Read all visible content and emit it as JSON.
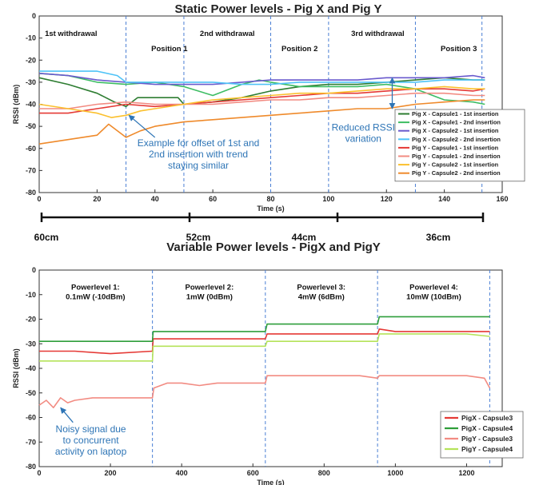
{
  "chart_data": [
    {
      "type": "line",
      "title": "Static Power levels - Pig X and Pig Y",
      "xlabel": "Time (s)",
      "ylabel": "RSSI (dBm)",
      "xlim": [
        0,
        160
      ],
      "ylim": [
        -80,
        0
      ],
      "xticks": [
        "0",
        "20",
        "40",
        "60",
        "80",
        "100",
        "120",
        "140",
        "160"
      ],
      "yticks": [
        "0",
        "-10",
        "-20",
        "-30",
        "-40",
        "-50",
        "-60",
        "-70",
        "-80"
      ],
      "grid": false,
      "legend_position": "right",
      "region_labels": [
        {
          "text": "1st withdrawal",
          "x": 11
        },
        {
          "text": "Position 1",
          "x": 45
        },
        {
          "text": "2nd withdrawal",
          "x": 65
        },
        {
          "text": "Position 2",
          "x": 90
        },
        {
          "text": "3rd withdrawal",
          "x": 117
        },
        {
          "text": "Position 3",
          "x": 145
        }
      ],
      "region_labels_y": [
        -9,
        -16,
        -9,
        -16,
        -9,
        -16
      ],
      "dividers_x": [
        30,
        50,
        80,
        100,
        130,
        153
      ],
      "annotations": [
        {
          "lines": [
            "Example for offset of 1st and",
            "2nd insertion with trend",
            "staying similar"
          ],
          "x": 55,
          "y": -59
        },
        {
          "lines": [
            "Reduced RSSI",
            "variation"
          ],
          "x": 112,
          "y": -52
        }
      ],
      "arrow_annotations": {
        "offset_arrow_from": [
          40,
          -55
        ],
        "offset_arrow_to": [
          31,
          -45
        ],
        "rssi_arrow_x": 122,
        "rssi_arrow_range": [
          -28,
          -42
        ]
      },
      "series": [
        {
          "name": "Pig X - Capsule1 - 1st insertion",
          "color": "#2e7d32",
          "x": [
            0,
            10,
            20,
            26,
            30,
            34,
            40,
            48,
            50,
            60,
            70,
            80,
            90,
            100,
            110,
            120,
            130,
            140,
            150,
            154
          ],
          "y": [
            -28,
            -31,
            -35,
            -39,
            -41,
            -37,
            -37,
            -37,
            -40,
            -39,
            -37,
            -34,
            -32,
            -31,
            -31,
            -30,
            -29,
            -28,
            -29,
            -29
          ]
        },
        {
          "name": "Pig X - Capsule1 - 2nd insertion",
          "color": "#3dbd63",
          "x": [
            0,
            10,
            20,
            30,
            40,
            50,
            60,
            70,
            76,
            80,
            90,
            100,
            110,
            120,
            130,
            140,
            150,
            154
          ],
          "y": [
            -26,
            -27,
            -30,
            -31,
            -30,
            -32,
            -36,
            -31,
            -29,
            -30,
            -32,
            -32,
            -32,
            -31,
            -33,
            -38,
            -39,
            -40
          ]
        },
        {
          "name": "Pig X - Capsule2 - 1st insertion",
          "color": "#6a5acd",
          "x": [
            0,
            10,
            20,
            30,
            40,
            50,
            60,
            70,
            80,
            90,
            100,
            110,
            120,
            130,
            140,
            150,
            154
          ],
          "y": [
            -26,
            -27,
            -29,
            -30,
            -31,
            -31,
            -31,
            -30,
            -29,
            -29,
            -29,
            -29,
            -28,
            -28,
            -28,
            -27,
            -28
          ]
        },
        {
          "name": "Pig X - Capsule2 - 2nd insertion",
          "color": "#4fc3f7",
          "x": [
            0,
            10,
            20,
            27,
            30,
            40,
            50,
            60,
            70,
            80,
            90,
            100,
            110,
            120,
            130,
            140,
            150,
            154
          ],
          "y": [
            -25,
            -25,
            -25,
            -27,
            -30,
            -30,
            -30,
            -30,
            -31,
            -31,
            -30,
            -30,
            -30,
            -30,
            -30,
            -29,
            -29,
            -29
          ]
        },
        {
          "name": "Pig Y - Capsule1 - 1st insertion",
          "color": "#e53935",
          "x": [
            0,
            10,
            20,
            30,
            40,
            50,
            60,
            70,
            80,
            90,
            100,
            110,
            120,
            130,
            140,
            150,
            154
          ],
          "y": [
            -44,
            -44,
            -42,
            -40,
            -41,
            -40,
            -39,
            -38,
            -37,
            -36,
            -35,
            -35,
            -34,
            -33,
            -33,
            -34,
            -33
          ]
        },
        {
          "name": "Pig Y - Capsule1 - 2nd insertion",
          "color": "#f28b82",
          "x": [
            0,
            10,
            20,
            30,
            40,
            50,
            60,
            70,
            80,
            90,
            100,
            110,
            120,
            130,
            140,
            150,
            154
          ],
          "y": [
            -42,
            -42,
            -40,
            -39,
            -40,
            -40,
            -40,
            -39,
            -38,
            -38,
            -37,
            -37,
            -36,
            -35,
            -35,
            -36,
            -36
          ]
        },
        {
          "name": "Pig Y - Capsule2 - 1st insertion",
          "color": "#fbc02d",
          "x": [
            0,
            10,
            20,
            25,
            30,
            35,
            40,
            50,
            60,
            70,
            80,
            90,
            100,
            110,
            120,
            130,
            140,
            150,
            154
          ],
          "y": [
            -40,
            -42,
            -44,
            -46,
            -45,
            -43,
            -42,
            -40,
            -38,
            -37,
            -36,
            -35,
            -35,
            -34,
            -33,
            -33,
            -32,
            -33,
            -33
          ]
        },
        {
          "name": "Pig Y - Capsule2 - 2nd insertion",
          "color": "#ef8a2b",
          "x": [
            0,
            10,
            20,
            24,
            28,
            30,
            35,
            40,
            50,
            60,
            70,
            80,
            90,
            100,
            110,
            120,
            130,
            140,
            150,
            154
          ],
          "y": [
            -58,
            -56,
            -54,
            -49,
            -53,
            -55,
            -52,
            -50,
            -48,
            -47,
            -46,
            -45,
            -44,
            -43,
            -42,
            -42,
            -40,
            -39,
            -38,
            -38
          ]
        }
      ],
      "distance_labels": [
        "60cm",
        "52cm",
        "44cm",
        "36cm"
      ]
    },
    {
      "type": "line",
      "title": "Variable Power levels - PigX and PigY",
      "xlabel": "Time (s)",
      "ylabel": "RSSI (dBm)",
      "xlim": [
        0,
        1300
      ],
      "ylim": [
        -80,
        0
      ],
      "xticks": [
        "0",
        "200",
        "400",
        "600",
        "800",
        "1000",
        "1200"
      ],
      "yticks": [
        "0",
        "-10",
        "-20",
        "-30",
        "-40",
        "-50",
        "-60",
        "-70",
        "-80"
      ],
      "grid": false,
      "legend_position": "bottom-right",
      "dividers_x": [
        318,
        635,
        950,
        1265
      ],
      "region_labels": [
        {
          "lines": [
            "Powerlevel 1:",
            "0.1mW (-10dBm)"
          ],
          "x": 158
        },
        {
          "lines": [
            "Powerlevel 2:",
            "1mW (0dBm)"
          ],
          "x": 478
        },
        {
          "lines": [
            "Powerlevel 3:",
            "4mW (6dBm)"
          ],
          "x": 792
        },
        {
          "lines": [
            "Powerlevel 4:",
            "10mW (10dBm)"
          ],
          "x": 1108
        }
      ],
      "region_labels_y": -8,
      "annotation": {
        "lines": [
          "Noisy signal due",
          "to concurrent",
          "activity on laptop"
        ],
        "x": 145,
        "y": -66
      },
      "arrow_annotation": {
        "from": [
          95,
          -62
        ],
        "to": [
          60,
          -56
        ]
      },
      "series": [
        {
          "name": "PigX - Capsule3",
          "color": "#e53935",
          "x": [
            0,
            100,
            200,
            318,
            320,
            400,
            500,
            635,
            640,
            700,
            800,
            950,
            955,
            1000,
            1100,
            1200,
            1265
          ],
          "y": [
            -33,
            -33,
            -34,
            -33,
            -28,
            -28,
            -28,
            -28,
            -26,
            -26,
            -26,
            -26,
            -24,
            -25,
            -25,
            -25,
            -25
          ]
        },
        {
          "name": "PigX - Capsule4",
          "color": "#2e9e3a",
          "x": [
            0,
            100,
            200,
            318,
            320,
            400,
            500,
            635,
            640,
            700,
            800,
            950,
            955,
            1000,
            1100,
            1200,
            1265
          ],
          "y": [
            -29,
            -29,
            -29,
            -29,
            -25,
            -25,
            -25,
            -25,
            -22,
            -22,
            -22,
            -22,
            -19,
            -19,
            -19,
            -19,
            -19
          ]
        },
        {
          "name": "PigY - Capsule3",
          "color": "#f28b82",
          "x": [
            0,
            20,
            40,
            60,
            80,
            100,
            150,
            200,
            250,
            318,
            322,
            360,
            400,
            450,
            500,
            550,
            600,
            635,
            640,
            700,
            800,
            900,
            950,
            955,
            1000,
            1100,
            1200,
            1250,
            1265
          ],
          "y": [
            -55,
            -53,
            -56,
            -52,
            -54,
            -53,
            -52,
            -52,
            -52,
            -52,
            -48,
            -46,
            -46,
            -47,
            -46,
            -46,
            -46,
            -46,
            -43,
            -43,
            -43,
            -43,
            -44,
            -43,
            -43,
            -43,
            -43,
            -44,
            -48
          ]
        },
        {
          "name": "PigY - Capsule4",
          "color": "#b5e35a",
          "x": [
            0,
            100,
            200,
            318,
            320,
            400,
            500,
            635,
            640,
            700,
            800,
            950,
            955,
            1000,
            1100,
            1200,
            1265
          ],
          "y": [
            -37,
            -37,
            -37,
            -37,
            -31,
            -31,
            -31,
            -31,
            -29,
            -29,
            -29,
            -29,
            -26,
            -26,
            -26,
            -26,
            -27
          ]
        }
      ]
    }
  ]
}
